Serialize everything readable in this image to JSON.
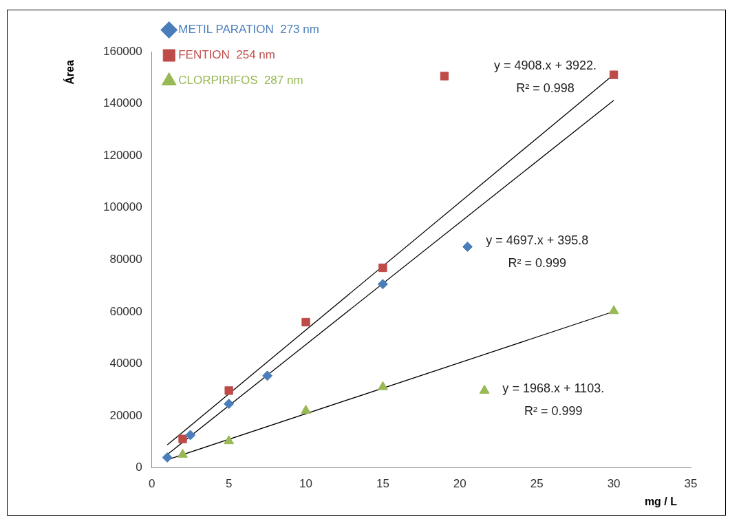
{
  "chart_data": {
    "type": "scatter",
    "xlabel": "mg / L",
    "ylabel": "Área",
    "xlim": [
      0,
      35
    ],
    "xticks": [
      0,
      5,
      10,
      15,
      20,
      25,
      30,
      35
    ],
    "ylim": [
      0,
      160000
    ],
    "yticks": [
      0,
      20000,
      40000,
      60000,
      80000,
      100000,
      120000,
      140000,
      160000
    ],
    "grid": false,
    "legend": "top left",
    "series": [
      {
        "name": "METIL PARATION  273 nm",
        "color": "#4a7ebb",
        "marker": "diamond",
        "x": [
          1,
          2.5,
          5,
          7.5,
          15,
          20.5
        ],
        "values": [
          4000,
          12600,
          24600,
          35400,
          70600,
          85000
        ]
      },
      {
        "name": "FENTION  254 nm",
        "color": "#be4b48",
        "marker": "square",
        "x": [
          2,
          5,
          10,
          15,
          19,
          30
        ],
        "values": [
          11100,
          29700,
          56000,
          76900,
          150600,
          151100
        ]
      },
      {
        "name": "CLORPIRIFOS  287 nm",
        "color": "#98b954",
        "marker": "triangle",
        "x": [
          2,
          5,
          10,
          15,
          21.6,
          30
        ],
        "values": [
          5100,
          10300,
          22000,
          31100,
          29700,
          60300
        ]
      },
      {
        "type": "line",
        "color": "#000000",
        "marker": "none",
        "x": [
          1,
          30
        ],
        "values": [
          5100,
          141300
        ]
      },
      {
        "type": "line",
        "color": "#000000",
        "marker": "none",
        "x": [
          1,
          30
        ],
        "values": [
          8800,
          151200
        ]
      },
      {
        "type": "line",
        "color": "#000000",
        "marker": "none",
        "x": [
          1,
          30
        ],
        "values": [
          3100,
          60100
        ]
      }
    ],
    "annotations": [
      "y = 4908.x + 3922.",
      "R² = 0.998",
      "y = 4697.x + 395.8",
      "R² = 0.999",
      "y = 1968.x + 1103.",
      "R² = 0.999"
    ]
  }
}
